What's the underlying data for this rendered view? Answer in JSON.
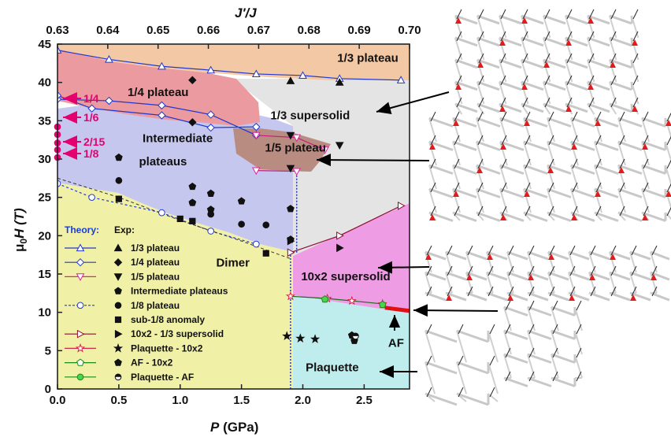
{
  "chart_data": {
    "type": "phase-diagram",
    "xlabel_var": "P",
    "xlabel_unit": " (GPa)",
    "ylabel_var": "μ",
    "ylabel_sub": "0",
    "ylabel_tail": "H (T)",
    "top_xlabel": "J'/J",
    "xlim": [
      0,
      2.87
    ],
    "ylim": [
      0,
      45
    ],
    "top_xlim": [
      0.63,
      0.7
    ],
    "xticks": [
      0.0,
      0.5,
      1.0,
      1.5,
      2.0,
      2.5
    ],
    "xtick_labels": [
      "0.0",
      "0.5",
      "1.0",
      "1.5",
      "2.0",
      "2.5"
    ],
    "yticks": [
      0,
      5,
      10,
      15,
      20,
      25,
      30,
      35,
      40,
      45
    ],
    "ytick_labels": [
      "0",
      "5",
      "10",
      "15",
      "20",
      "25",
      "30",
      "35",
      "40",
      "45"
    ],
    "top_ticks": [
      0.63,
      0.64,
      0.65,
      0.66,
      0.67,
      0.68,
      0.69,
      0.7
    ],
    "top_tick_labels": [
      "0.63",
      "0.64",
      "0.65",
      "0.66",
      "0.67",
      "0.68",
      "0.69",
      "0.70"
    ],
    "region_labels": [
      {
        "text": "1/3 plateau",
        "x": 2.53,
        "y": 42.7
      },
      {
        "text": "1/4 plateau",
        "x": 0.82,
        "y": 38.2
      },
      {
        "text": "1/3 supersolid",
        "x": 2.06,
        "y": 35.2
      },
      {
        "text": "Intermediate",
        "x": 0.98,
        "y": 32.2
      },
      {
        "text": "plateaus",
        "x": 0.86,
        "y": 29.2
      },
      {
        "text": "1/5 plateau",
        "x": 1.94,
        "y": 31.0
      },
      {
        "text": "Dimer",
        "x": 1.43,
        "y": 16.0
      },
      {
        "text": "10x2 supersolid",
        "x": 2.35,
        "y": 14.2
      },
      {
        "text": "AF",
        "x": 2.76,
        "y": 5.5
      },
      {
        "text": "Plaquette",
        "x": 2.24,
        "y": 2.3
      }
    ],
    "fraction_labels": [
      "1/4",
      "1/6",
      "2/15",
      "1/8"
    ],
    "legend": {
      "theory_label": "Theory:",
      "exp_label": "Exp:",
      "items": [
        "1/3 plateau",
        "1/4 plateau",
        "1/5 plateau",
        "Intermediate plateaus",
        "1/8 plateau",
        "sub-1/8 anomaly",
        "10x2 - 1/3 supersolid",
        "Plaquette - 10x2",
        "AF - 10x2",
        "Plaquette - AF"
      ]
    },
    "theory": {
      "boundary_1_3_plateau": [
        [
          0,
          44.2
        ],
        [
          0.42,
          43.0
        ],
        [
          0.85,
          42.1
        ],
        [
          1.25,
          41.6
        ],
        [
          1.62,
          41.1
        ],
        [
          2.0,
          40.9
        ],
        [
          2.3,
          40.5
        ],
        [
          2.8,
          40.3
        ]
      ],
      "upper_1_4_plateau": [
        [
          0,
          37.8
        ],
        [
          0.42,
          37.6
        ],
        [
          0.85,
          37.0
        ],
        [
          1.25,
          35.8
        ],
        [
          1.62,
          33.1
        ]
      ],
      "lower_1_4_plateau": [
        [
          0,
          38.3
        ],
        [
          0.28,
          36.6
        ],
        [
          0.85,
          35.7
        ],
        [
          1.25,
          34.1
        ],
        [
          1.62,
          34.2
        ]
      ],
      "upper_1_5_plateau": [
        [
          1.62,
          33.1
        ],
        [
          1.95,
          32.8
        ],
        [
          2.18,
          31.2
        ]
      ],
      "lower_1_5_plateau": [
        [
          1.62,
          28.5
        ],
        [
          1.95,
          28.4
        ]
      ],
      "intermediate_lower": [
        [
          0,
          26.8
        ],
        [
          0.28,
          25.0
        ],
        [
          0.85,
          23.0
        ],
        [
          1.25,
          20.6
        ],
        [
          1.62,
          18.9
        ]
      ],
      "dimer_upper_boundary": [
        [
          0,
          27.5
        ],
        [
          0.5,
          25.0
        ],
        [
          1.0,
          22.0
        ],
        [
          1.5,
          19.3
        ],
        [
          1.9,
          17.0
        ]
      ],
      "supersolid_10x2_upper": [
        [
          1.9,
          17.8
        ],
        [
          2.3,
          20.0
        ],
        [
          2.8,
          23.9
        ]
      ],
      "plaquette_10x2": [
        [
          1.9,
          12.1
        ],
        [
          2.2,
          11.8
        ],
        [
          2.4,
          11.5
        ],
        [
          2.65,
          11.1
        ]
      ],
      "af_10x2": [
        [
          2.18,
          11.7
        ],
        [
          2.65,
          11.0
        ]
      ],
      "plaquette_af": [
        [
          2.67,
          10.6
        ],
        [
          2.87,
          10.2
        ]
      ]
    },
    "experiment": {
      "plateau_1_3": [
        [
          1.9,
          40.2
        ],
        [
          2.3,
          40.0
        ]
      ],
      "plateau_1_4": [
        [
          1.1,
          40.3
        ],
        [
          1.1,
          34.8
        ]
      ],
      "plateau_1_5": [
        [
          1.9,
          33.1
        ],
        [
          2.3,
          31.8
        ],
        [
          1.9,
          28.8
        ]
      ],
      "intermediate": [
        [
          0.5,
          30.2
        ],
        [
          1.1,
          26.4
        ],
        [
          1.25,
          25.5
        ],
        [
          1.5,
          24.5
        ],
        [
          1.9,
          23.5
        ],
        [
          1.1,
          24.3
        ],
        [
          1.25,
          23.4
        ],
        [
          1.9,
          19.5
        ]
      ],
      "plateau_1_8": [
        [
          0.5,
          27.2
        ],
        [
          1.1,
          24.3
        ],
        [
          1.25,
          22.8
        ],
        [
          1.5,
          21.5
        ],
        [
          1.7,
          21.4
        ]
      ],
      "sub_1_8": [
        [
          0.5,
          24.8
        ],
        [
          1.0,
          22.2
        ],
        [
          1.1,
          21.9
        ],
        [
          1.7,
          17.7
        ]
      ],
      "supersolid_10x2_1_3": [
        [
          1.9,
          19.3
        ],
        [
          2.3,
          18.4
        ]
      ],
      "plaquette_10x2": [
        [
          1.87,
          6.9
        ],
        [
          1.98,
          6.6
        ],
        [
          2.1,
          6.5
        ]
      ],
      "af_10x2": [
        [
          2.4,
          7.0
        ],
        [
          2.42,
          6.3
        ]
      ],
      "plaquette_af": [
        [
          2.43,
          6.9
        ]
      ]
    },
    "legend_placement": "lower-left",
    "grid": false
  }
}
